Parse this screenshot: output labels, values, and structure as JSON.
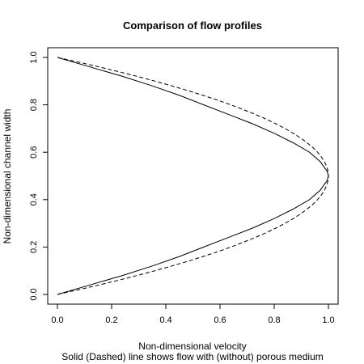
{
  "chart_data": {
    "type": "line",
    "title": "Comparison of flow profiles",
    "xlabel": "Non-dimensional velocity",
    "xlabel_sub": "Solid (Dashed) line shows flow with (without) porous medium",
    "ylabel": "Non-dimensional channel width",
    "xlim": [
      0.0,
      1.0
    ],
    "ylim": [
      0.0,
      1.0
    ],
    "xticks": [
      "0.0",
      "0.2",
      "0.4",
      "0.6",
      "0.8",
      "1.0"
    ],
    "yticks": [
      "0.0",
      "0.2",
      "0.4",
      "0.6",
      "0.8",
      "1.0"
    ],
    "grid": false,
    "legend": "none",
    "series": [
      {
        "style": "solid",
        "color": "#000000",
        "points": [
          [
            0.0,
            0.0
          ],
          [
            0.12,
            0.04
          ],
          [
            0.24,
            0.08
          ],
          [
            0.35,
            0.12
          ],
          [
            0.45,
            0.16
          ],
          [
            0.54,
            0.2
          ],
          [
            0.63,
            0.24
          ],
          [
            0.72,
            0.28
          ],
          [
            0.8,
            0.32
          ],
          [
            0.87,
            0.36
          ],
          [
            0.93,
            0.4
          ],
          [
            0.97,
            0.44
          ],
          [
            0.995,
            0.48
          ],
          [
            1.0,
            0.5
          ],
          [
            0.995,
            0.52
          ],
          [
            0.97,
            0.56
          ],
          [
            0.93,
            0.6
          ],
          [
            0.87,
            0.64
          ],
          [
            0.8,
            0.68
          ],
          [
            0.72,
            0.72
          ],
          [
            0.63,
            0.76
          ],
          [
            0.54,
            0.8
          ],
          [
            0.45,
            0.84
          ],
          [
            0.35,
            0.88
          ],
          [
            0.24,
            0.92
          ],
          [
            0.12,
            0.96
          ],
          [
            0.0,
            1.0
          ]
        ]
      },
      {
        "style": "dashed",
        "color": "#000000",
        "points": [
          [
            0.0,
            0.0
          ],
          [
            0.0784,
            0.02
          ],
          [
            0.1536,
            0.04
          ],
          [
            0.2256,
            0.06
          ],
          [
            0.2944,
            0.08
          ],
          [
            0.36,
            0.1
          ],
          [
            0.4224,
            0.12
          ],
          [
            0.4816,
            0.14
          ],
          [
            0.5376,
            0.16
          ],
          [
            0.5904,
            0.18
          ],
          [
            0.64,
            0.2
          ],
          [
            0.6864,
            0.22
          ],
          [
            0.7296,
            0.24
          ],
          [
            0.7696,
            0.26
          ],
          [
            0.8064,
            0.28
          ],
          [
            0.84,
            0.3
          ],
          [
            0.8704,
            0.32
          ],
          [
            0.8976,
            0.34
          ],
          [
            0.9216,
            0.36
          ],
          [
            0.9424,
            0.38
          ],
          [
            0.96,
            0.4
          ],
          [
            0.9744,
            0.42
          ],
          [
            0.9856,
            0.44
          ],
          [
            0.9936,
            0.46
          ],
          [
            0.9984,
            0.48
          ],
          [
            1.0,
            0.5
          ],
          [
            0.9984,
            0.52
          ],
          [
            0.9936,
            0.54
          ],
          [
            0.9856,
            0.56
          ],
          [
            0.9744,
            0.58
          ],
          [
            0.96,
            0.6
          ],
          [
            0.9424,
            0.62
          ],
          [
            0.9216,
            0.64
          ],
          [
            0.8976,
            0.66
          ],
          [
            0.8704,
            0.68
          ],
          [
            0.84,
            0.7
          ],
          [
            0.8064,
            0.72
          ],
          [
            0.7696,
            0.74
          ],
          [
            0.7296,
            0.76
          ],
          [
            0.6864,
            0.78
          ],
          [
            0.64,
            0.8
          ],
          [
            0.5904,
            0.82
          ],
          [
            0.5376,
            0.84
          ],
          [
            0.4816,
            0.86
          ],
          [
            0.4224,
            0.88
          ],
          [
            0.36,
            0.9
          ],
          [
            0.2944,
            0.92
          ],
          [
            0.2256,
            0.94
          ],
          [
            0.1536,
            0.96
          ],
          [
            0.0784,
            0.98
          ],
          [
            0.0,
            1.0
          ]
        ]
      }
    ]
  }
}
